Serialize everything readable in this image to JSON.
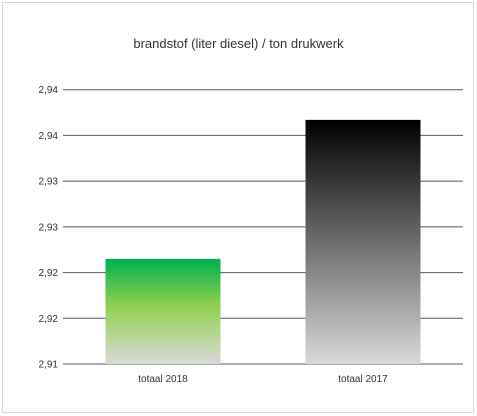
{
  "chart_data": {
    "type": "bar",
    "title": "brandstof (liter diesel) / ton drukwerk",
    "categories": [
      "totaal 2018",
      "totaal 2017"
    ],
    "values": [
      2.9215,
      2.9367
    ],
    "ylim": [
      2.91,
      2.9415
    ],
    "yticks": [
      2.91,
      2.915,
      2.92,
      2.925,
      2.93,
      2.935,
      2.94
    ],
    "ytick_labels": [
      "2,91",
      "2,92",
      "2,92",
      "2,93",
      "2,93",
      "2,94",
      "2,94"
    ],
    "grid": true,
    "legend": "none",
    "colors": {
      "bar_2018_top": "#00b050",
      "bar_2018_mid": "#92d050",
      "bar_2018_bottom": "#d9d9d9",
      "bar_2017_top": "#000000",
      "bar_2017_bottom": "#d9d9d9",
      "gridline": "#595959"
    }
  }
}
